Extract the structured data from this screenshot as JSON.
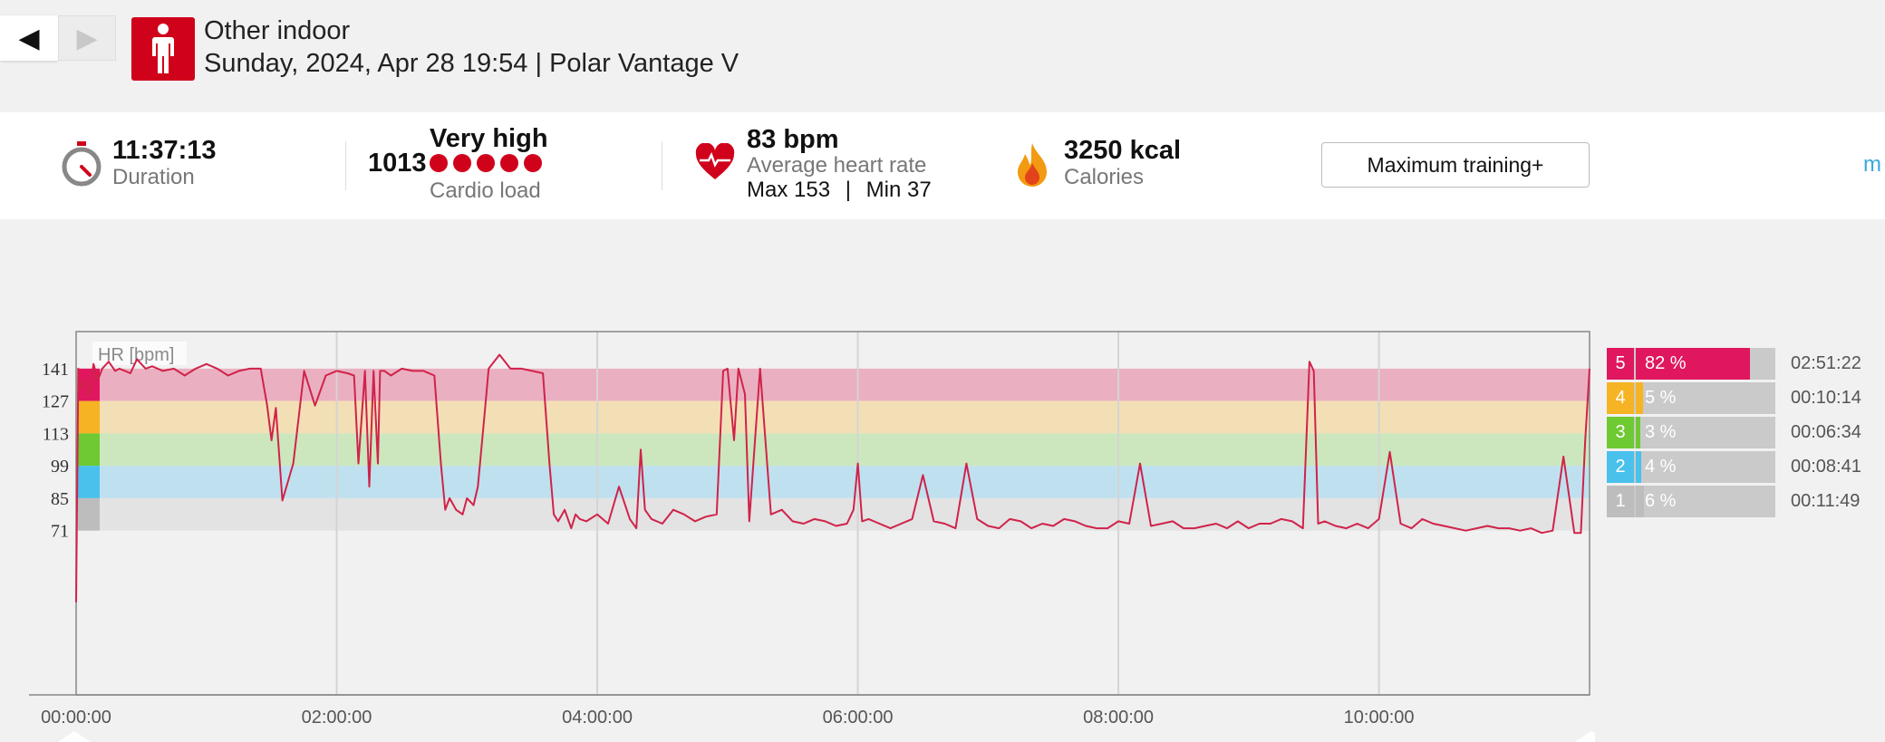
{
  "nav": {
    "back_glyph": "◀",
    "forward_glyph": "▶"
  },
  "header": {
    "sport_icon": "person-standing-icon",
    "title": "Other indoor",
    "subtitle": "Sunday, 2024, Apr 28 19:54 | Polar Vantage V"
  },
  "summary": {
    "duration": {
      "value": "11:37:13",
      "label": "Duration",
      "icon": "stopwatch-icon"
    },
    "cardio_load": {
      "value": "1013",
      "level": "Very high",
      "label": "Cardio load",
      "dots": 5
    },
    "heart_rate": {
      "value": "83 bpm",
      "label": "Average heart rate",
      "max_label": "Max 153",
      "separator": "|",
      "min_label": "Min 37",
      "icon": "heart-icon"
    },
    "calories": {
      "value": "3250 kcal",
      "label": "Calories",
      "icon": "flame-icon"
    },
    "training_button": "Maximum training+",
    "more_link": "m"
  },
  "chart": {
    "legend": "HR [bpm]",
    "y_ticks": [
      "141",
      "127",
      "113",
      "99",
      "85",
      "71"
    ],
    "x_ticks": [
      "00:00:00",
      "02:00:00",
      "04:00:00",
      "06:00:00",
      "08:00:00",
      "10:00:00"
    ]
  },
  "chart_data": {
    "type": "line",
    "series": [
      {
        "name": "HR [bpm]",
        "x_minutes": [
          0,
          1,
          2,
          4,
          6,
          8,
          10,
          12,
          15,
          18,
          20,
          25,
          28,
          30,
          32,
          35,
          40,
          45,
          50,
          55,
          60,
          65,
          70,
          75,
          80,
          85,
          88,
          90,
          92,
          95,
          100,
          105,
          110,
          115,
          120,
          125,
          128,
          130,
          133,
          135,
          137,
          139,
          140,
          142,
          145,
          150,
          155,
          160,
          165,
          168,
          170,
          172,
          175,
          178,
          180,
          183,
          185,
          188,
          190,
          195,
          200,
          205,
          210,
          215,
          218,
          220,
          222,
          225,
          228,
          230,
          232,
          235,
          240,
          245,
          250,
          255,
          258,
          260,
          262,
          265,
          270,
          275,
          280,
          285,
          290,
          295,
          298,
          300,
          303,
          305,
          308,
          310,
          315,
          320,
          325,
          330,
          335,
          340,
          345,
          350,
          355,
          358,
          360,
          362,
          365,
          370,
          375,
          380,
          385,
          390,
          395,
          400,
          405,
          410,
          415,
          420,
          425,
          430,
          435,
          440,
          445,
          450,
          455,
          460,
          465,
          470,
          475,
          480,
          485,
          490,
          495,
          500,
          505,
          510,
          515,
          520,
          525,
          530,
          535,
          540,
          545,
          550,
          555,
          560,
          565,
          568,
          570,
          572,
          575,
          580,
          585,
          590,
          595,
          600,
          605,
          610,
          615,
          620,
          625,
          630,
          635,
          640,
          645,
          650,
          655,
          660,
          665,
          670,
          675,
          680,
          685,
          690,
          693,
          695,
          697
        ],
        "y_bpm": [
          40,
          141,
          132,
          136,
          129,
          143,
          136,
          141,
          144,
          140,
          141,
          139,
          145,
          143,
          141,
          142,
          140,
          141,
          138,
          141,
          143,
          141,
          138,
          140,
          141,
          141,
          125,
          110,
          124,
          84,
          100,
          140,
          125,
          138,
          140,
          139,
          138,
          100,
          140,
          90,
          140,
          100,
          140,
          140,
          138,
          141,
          140,
          140,
          138,
          100,
          80,
          85,
          80,
          78,
          85,
          82,
          90,
          120,
          141,
          147,
          141,
          141,
          140,
          139,
          100,
          78,
          75,
          80,
          72,
          78,
          76,
          75,
          78,
          74,
          90,
          76,
          72,
          106,
          80,
          76,
          74,
          80,
          78,
          75,
          77,
          78,
          140,
          141,
          110,
          141,
          130,
          75,
          141,
          78,
          80,
          75,
          74,
          76,
          75,
          73,
          74,
          80,
          100,
          75,
          76,
          74,
          72,
          74,
          76,
          95,
          75,
          74,
          72,
          100,
          76,
          73,
          72,
          76,
          75,
          72,
          74,
          73,
          76,
          75,
          73,
          72,
          72,
          75,
          74,
          100,
          73,
          74,
          75,
          72,
          72,
          73,
          74,
          72,
          75,
          72,
          74,
          74,
          76,
          75,
          72,
          144,
          140,
          74,
          75,
          73,
          72,
          74,
          72,
          76,
          105,
          74,
          72,
          76,
          74,
          73,
          72,
          71,
          72,
          73,
          72,
          72,
          71,
          72,
          70,
          71,
          103,
          70,
          70,
          110,
          141
        ],
        "color": "#d0234a"
      }
    ],
    "xlabel": "",
    "ylabel": "HR [bpm]",
    "x_ticks": [
      "00:00:00",
      "02:00:00",
      "04:00:00",
      "06:00:00",
      "08:00:00",
      "10:00:00"
    ],
    "xlim_minutes": [
      0,
      697
    ],
    "y_ticks": [
      141,
      127,
      113,
      99,
      85,
      71
    ],
    "ylim": [
      0,
      157
    ],
    "grid": true,
    "zones": [
      {
        "zone": 5,
        "range": [
          127,
          141
        ],
        "color": "#eab0c2"
      },
      {
        "zone": 4,
        "range": [
          113,
          127
        ],
        "color": "#f3dfb5"
      },
      {
        "zone": 3,
        "range": [
          99,
          113
        ],
        "color": "#cce7bd"
      },
      {
        "zone": 2,
        "range": [
          85,
          99
        ],
        "color": "#bfe1ef"
      },
      {
        "zone": 1,
        "range": [
          71,
          85
        ],
        "color": "#e3e3e3"
      }
    ]
  },
  "zones": [
    {
      "num": "5",
      "pct": "82 %",
      "fraction": 0.82,
      "time": "02:51:22",
      "color": "#e0175f"
    },
    {
      "num": "4",
      "pct": "5 %",
      "fraction": 0.05,
      "time": "00:10:14",
      "color": "#f6b324"
    },
    {
      "num": "3",
      "pct": "3 %",
      "fraction": 0.03,
      "time": "00:06:34",
      "color": "#6ec932"
    },
    {
      "num": "2",
      "pct": "4 %",
      "fraction": 0.04,
      "time": "00:08:41",
      "color": "#4ac1ec"
    },
    {
      "num": "1",
      "pct": "6 %",
      "fraction": 0.06,
      "time": "00:11:49",
      "color": "#bdbdbd"
    }
  ]
}
